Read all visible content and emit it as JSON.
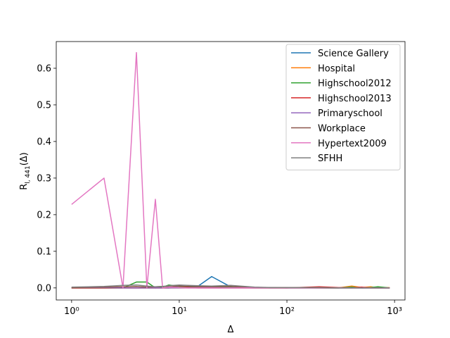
{
  "chart_data": {
    "type": "line",
    "xlabel": "Δ",
    "ylabel": {
      "base": "R",
      "sub": "l, 441",
      "tail": "(Δ)"
    },
    "xscale": "log",
    "xlim": [
      0.72,
      1250
    ],
    "ylim": [
      -0.033,
      0.673
    ],
    "xticks": [
      {
        "value": 1,
        "label": "10⁰"
      },
      {
        "value": 10,
        "label": "10¹"
      },
      {
        "value": 100,
        "label": "10²"
      },
      {
        "value": 1000,
        "label": "10³"
      }
    ],
    "yticks": [
      {
        "value": 0,
        "label": "0.0"
      },
      0.1,
      0.2,
      0.3,
      0.4,
      0.5,
      0.6
    ],
    "grid": false,
    "legend": "upper right",
    "x": [
      1,
      2,
      3,
      4,
      5,
      6,
      7,
      8,
      10,
      12,
      15,
      20,
      30,
      50,
      70,
      100,
      200,
      300,
      400,
      500,
      600,
      700,
      900
    ],
    "series": [
      {
        "name": "Science Gallery",
        "color": "#1f77b4",
        "values": [
          0,
          0,
          0,
          0,
          0,
          0,
          0,
          0,
          0.005,
          0.004,
          0.005,
          0.031,
          0.003,
          0.001,
          0.001,
          0,
          0,
          0,
          0,
          0,
          0,
          0,
          0
        ]
      },
      {
        "name": "Hospital",
        "color": "#ff7f0e",
        "values": [
          0,
          0,
          0,
          0,
          0,
          0,
          0,
          0,
          0,
          0,
          0,
          0,
          0,
          0,
          0,
          0,
          0,
          0,
          0.005,
          0.001,
          0.003,
          0,
          0.001
        ]
      },
      {
        "name": "Highschool2012",
        "color": "#2ca02c",
        "values": [
          0,
          0,
          0,
          0.016,
          0.016,
          0,
          0.002,
          0.008,
          0.004,
          0.003,
          0.002,
          0.002,
          0.001,
          0,
          0,
          0,
          0,
          0,
          0.002,
          0,
          0.001,
          0.003,
          0
        ]
      },
      {
        "name": "Highschool2013",
        "color": "#d62728",
        "values": [
          0,
          0,
          0,
          0,
          0,
          0,
          0,
          0,
          0.001,
          0.001,
          0,
          0,
          0,
          0,
          0,
          0,
          0.003,
          0.001,
          0,
          0.002,
          0,
          0,
          0
        ]
      },
      {
        "name": "Primaryschool",
        "color": "#9467bd",
        "values": [
          0.001,
          0.001,
          0,
          0,
          0,
          0,
          0,
          0,
          0,
          0,
          0,
          0,
          0,
          0,
          0,
          0,
          0,
          0,
          0,
          0,
          0,
          0,
          0
        ]
      },
      {
        "name": "Workplace",
        "color": "#8c564b",
        "values": [
          0.001,
          0.002,
          0.003,
          0.004,
          0.002,
          0.003,
          0.004,
          0.003,
          0.005,
          0.004,
          0.003,
          0.003,
          0.004,
          0.001,
          0.001,
          0.001,
          0,
          0,
          0,
          0,
          0,
          0,
          0
        ]
      },
      {
        "name": "Hypertext2009",
        "color": "#e377c2",
        "values": [
          0.228,
          0.3,
          0,
          0.643,
          0,
          0.242,
          0,
          0.002,
          0.001,
          0,
          0,
          0,
          0,
          0,
          0,
          0,
          0,
          0,
          0,
          0,
          0,
          0,
          0
        ]
      },
      {
        "name": "SFHH",
        "color": "#7f7f7f",
        "values": [
          0.002,
          0.004,
          0.007,
          0.008,
          0.005,
          0.003,
          0.004,
          0.006,
          0.008,
          0.007,
          0.006,
          0.005,
          0.007,
          0.002,
          0.001,
          0.001,
          0.001,
          0,
          0,
          0,
          0,
          0,
          0
        ]
      }
    ]
  }
}
